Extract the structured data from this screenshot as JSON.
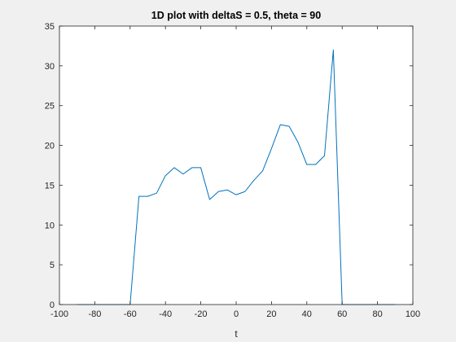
{
  "chart_data": {
    "type": "line",
    "title": "1D plot with deltaS = 0.5, theta = 90",
    "xlabel": "t",
    "ylabel": "",
    "xlim": [
      -100,
      100
    ],
    "ylim": [
      0,
      35
    ],
    "xticks": [
      -100,
      -80,
      -60,
      -40,
      -20,
      0,
      20,
      40,
      60,
      80,
      100
    ],
    "yticks": [
      0,
      5,
      10,
      15,
      20,
      25,
      30,
      35
    ],
    "grid": false,
    "line_color": "#0072bd",
    "series": [
      {
        "x": [
          -90,
          -85,
          -80,
          -75,
          -70,
          -65,
          -60,
          -55,
          -50,
          -45,
          -40,
          -35,
          -30,
          -25,
          -20,
          -15,
          -10,
          -5,
          0,
          5,
          10,
          15,
          20,
          25,
          30,
          35,
          40,
          45,
          50,
          55,
          60,
          65,
          70,
          75,
          80,
          85,
          90
        ],
        "y": [
          0,
          0,
          0,
          0,
          0,
          0,
          0,
          13.6,
          13.6,
          14.0,
          16.2,
          17.2,
          16.4,
          17.2,
          17.2,
          13.2,
          14.2,
          14.4,
          13.8,
          14.2,
          15.6,
          16.8,
          19.6,
          22.6,
          22.4,
          20.4,
          17.6,
          17.6,
          18.7,
          32.0,
          0,
          0,
          0,
          0,
          0,
          0,
          0
        ]
      }
    ]
  }
}
